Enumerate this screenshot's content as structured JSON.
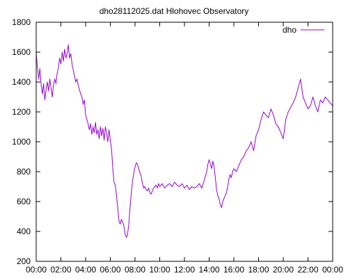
{
  "chart_data": {
    "type": "line",
    "title": "dho28112025.dat Hlohovec Observatory",
    "xlabel": "",
    "ylabel": "",
    "x_unit": "hours",
    "xlim": [
      0,
      24
    ],
    "ylim": [
      200,
      1800
    ],
    "x_ticks": [
      {
        "value": 0,
        "label": "00:00"
      },
      {
        "value": 2,
        "label": "02:00"
      },
      {
        "value": 4,
        "label": "04:00"
      },
      {
        "value": 6,
        "label": "06:00"
      },
      {
        "value": 8,
        "label": "08:00"
      },
      {
        "value": 10,
        "label": "10:00"
      },
      {
        "value": 12,
        "label": "12:00"
      },
      {
        "value": 14,
        "label": "14:00"
      },
      {
        "value": 16,
        "label": "16:00"
      },
      {
        "value": 18,
        "label": "18:00"
      },
      {
        "value": 20,
        "label": "20:00"
      },
      {
        "value": 22,
        "label": "22:00"
      },
      {
        "value": 24,
        "label": "00:00"
      }
    ],
    "y_ticks": [
      {
        "value": 200,
        "label": "200"
      },
      {
        "value": 400,
        "label": "400"
      },
      {
        "value": 600,
        "label": "600"
      },
      {
        "value": 800,
        "label": "800"
      },
      {
        "value": 1000,
        "label": "1000"
      },
      {
        "value": 1200,
        "label": "1200"
      },
      {
        "value": 1400,
        "label": "1400"
      },
      {
        "value": 1600,
        "label": "1600"
      },
      {
        "value": 1800,
        "label": "1800"
      }
    ],
    "grid": false,
    "legend_position": "top-right",
    "series": [
      {
        "name": "dho",
        "color": "#9400d3",
        "points": [
          [
            0.0,
            1590
          ],
          [
            0.1,
            1500
          ],
          [
            0.2,
            1420
          ],
          [
            0.3,
            1490
          ],
          [
            0.4,
            1380
          ],
          [
            0.5,
            1320
          ],
          [
            0.6,
            1390
          ],
          [
            0.7,
            1280
          ],
          [
            0.8,
            1350
          ],
          [
            0.9,
            1400
          ],
          [
            1.0,
            1340
          ],
          [
            1.1,
            1420
          ],
          [
            1.2,
            1360
          ],
          [
            1.3,
            1300
          ],
          [
            1.4,
            1380
          ],
          [
            1.5,
            1420
          ],
          [
            1.6,
            1390
          ],
          [
            1.7,
            1460
          ],
          [
            1.8,
            1500
          ],
          [
            1.9,
            1560
          ],
          [
            2.0,
            1520
          ],
          [
            2.1,
            1600
          ],
          [
            2.2,
            1540
          ],
          [
            2.3,
            1620
          ],
          [
            2.4,
            1560
          ],
          [
            2.5,
            1590
          ],
          [
            2.6,
            1650
          ],
          [
            2.7,
            1560
          ],
          [
            2.8,
            1590
          ],
          [
            2.9,
            1520
          ],
          [
            3.0,
            1480
          ],
          [
            3.1,
            1440
          ],
          [
            3.2,
            1400
          ],
          [
            3.3,
            1420
          ],
          [
            3.4,
            1380
          ],
          [
            3.5,
            1350
          ],
          [
            3.6,
            1320
          ],
          [
            3.7,
            1300
          ],
          [
            3.8,
            1250
          ],
          [
            3.9,
            1280
          ],
          [
            4.0,
            1180
          ],
          [
            4.1,
            1150
          ],
          [
            4.2,
            1120
          ],
          [
            4.3,
            1080
          ],
          [
            4.4,
            1120
          ],
          [
            4.5,
            1050
          ],
          [
            4.6,
            1100
          ],
          [
            4.7,
            1060
          ],
          [
            4.8,
            1130
          ],
          [
            4.9,
            1050
          ],
          [
            5.0,
            1080
          ],
          [
            5.1,
            1020
          ],
          [
            5.2,
            1100
          ],
          [
            5.3,
            1040
          ],
          [
            5.4,
            1090
          ],
          [
            5.5,
            1010
          ],
          [
            5.6,
            1100
          ],
          [
            5.7,
            1060
          ],
          [
            5.8,
            1000
          ],
          [
            5.9,
            1080
          ],
          [
            6.0,
            1010
          ],
          [
            6.1,
            950
          ],
          [
            6.2,
            820
          ],
          [
            6.3,
            730
          ],
          [
            6.4,
            710
          ],
          [
            6.5,
            640
          ],
          [
            6.6,
            560
          ],
          [
            6.7,
            470
          ],
          [
            6.8,
            450
          ],
          [
            6.9,
            480
          ],
          [
            7.0,
            460
          ],
          [
            7.1,
            440
          ],
          [
            7.2,
            380
          ],
          [
            7.3,
            360
          ],
          [
            7.4,
            380
          ],
          [
            7.5,
            450
          ],
          [
            7.6,
            560
          ],
          [
            7.7,
            660
          ],
          [
            7.8,
            740
          ],
          [
            7.9,
            790
          ],
          [
            8.0,
            830
          ],
          [
            8.1,
            860
          ],
          [
            8.2,
            850
          ],
          [
            8.3,
            820
          ],
          [
            8.4,
            790
          ],
          [
            8.5,
            770
          ],
          [
            8.6,
            720
          ],
          [
            8.7,
            690
          ],
          [
            8.8,
            700
          ],
          [
            8.9,
            680
          ],
          [
            9.0,
            670
          ],
          [
            9.1,
            690
          ],
          [
            9.2,
            660
          ],
          [
            9.3,
            650
          ],
          [
            9.4,
            670
          ],
          [
            9.5,
            690
          ],
          [
            9.6,
            700
          ],
          [
            9.7,
            710
          ],
          [
            9.8,
            690
          ],
          [
            9.9,
            720
          ],
          [
            10.0,
            700
          ],
          [
            10.2,
            720
          ],
          [
            10.4,
            690
          ],
          [
            10.6,
            710
          ],
          [
            10.8,
            720
          ],
          [
            11.0,
            700
          ],
          [
            11.2,
            730
          ],
          [
            11.4,
            710
          ],
          [
            11.6,
            700
          ],
          [
            11.8,
            720
          ],
          [
            12.0,
            690
          ],
          [
            12.2,
            710
          ],
          [
            12.4,
            680
          ],
          [
            12.6,
            700
          ],
          [
            12.8,
            690
          ],
          [
            13.0,
            700
          ],
          [
            13.2,
            720
          ],
          [
            13.4,
            690
          ],
          [
            13.6,
            740
          ],
          [
            13.8,
            800
          ],
          [
            13.9,
            850
          ],
          [
            14.0,
            880
          ],
          [
            14.1,
            850
          ],
          [
            14.2,
            820
          ],
          [
            14.3,
            870
          ],
          [
            14.4,
            830
          ],
          [
            14.5,
            760
          ],
          [
            14.6,
            680
          ],
          [
            14.7,
            640
          ],
          [
            14.8,
            620
          ],
          [
            14.9,
            580
          ],
          [
            15.0,
            560
          ],
          [
            15.1,
            600
          ],
          [
            15.2,
            620
          ],
          [
            15.3,
            640
          ],
          [
            15.4,
            660
          ],
          [
            15.5,
            700
          ],
          [
            15.6,
            750
          ],
          [
            15.7,
            780
          ],
          [
            15.8,
            760
          ],
          [
            15.9,
            800
          ],
          [
            16.0,
            820
          ],
          [
            16.2,
            800
          ],
          [
            16.4,
            840
          ],
          [
            16.6,
            880
          ],
          [
            16.8,
            900
          ],
          [
            17.0,
            940
          ],
          [
            17.2,
            960
          ],
          [
            17.4,
            1000
          ],
          [
            17.6,
            940
          ],
          [
            17.8,
            1040
          ],
          [
            18.0,
            1080
          ],
          [
            18.2,
            1150
          ],
          [
            18.4,
            1200
          ],
          [
            18.6,
            1180
          ],
          [
            18.8,
            1160
          ],
          [
            19.0,
            1220
          ],
          [
            19.2,
            1180
          ],
          [
            19.4,
            1120
          ],
          [
            19.6,
            1100
          ],
          [
            19.8,
            1060
          ],
          [
            20.0,
            1020
          ],
          [
            20.2,
            1150
          ],
          [
            20.4,
            1200
          ],
          [
            20.6,
            1230
          ],
          [
            20.8,
            1260
          ],
          [
            21.0,
            1300
          ],
          [
            21.2,
            1360
          ],
          [
            21.4,
            1420
          ],
          [
            21.6,
            1300
          ],
          [
            21.8,
            1260
          ],
          [
            22.0,
            1220
          ],
          [
            22.2,
            1240
          ],
          [
            22.4,
            1300
          ],
          [
            22.6,
            1240
          ],
          [
            22.8,
            1200
          ],
          [
            23.0,
            1280
          ],
          [
            23.2,
            1260
          ],
          [
            23.4,
            1300
          ],
          [
            23.6,
            1280
          ],
          [
            23.8,
            1260
          ],
          [
            24.0,
            1240
          ]
        ]
      }
    ]
  }
}
